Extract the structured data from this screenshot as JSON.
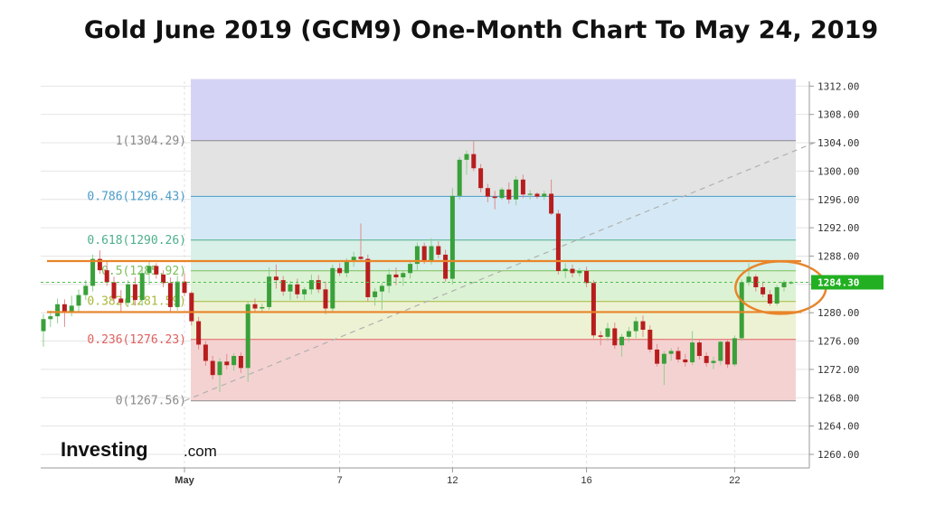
{
  "title": "Gold June 2019 (GCM9) One-Month Chart To May 24, 2019",
  "logo": {
    "main": "Investing",
    "suffix": ".com"
  },
  "chart_data": {
    "type": "candlestick",
    "y_range": [
      1258.0,
      1313.0
    ],
    "y_ticks": [
      "1312.00",
      "1308.00",
      "1304.00",
      "1300.00",
      "1296.00",
      "1292.00",
      "1288.00",
      "1284.00",
      "1280.00",
      "1276.00",
      "1272.00",
      "1268.00",
      "1264.00",
      "1260.00"
    ],
    "x_ticks": [
      {
        "label": "May",
        "index": 20
      },
      {
        "label": "7",
        "index": 42
      },
      {
        "label": "12",
        "index": 58
      },
      {
        "label": "16",
        "index": 77
      },
      {
        "label": "22",
        "index": 98
      }
    ],
    "last_price": "1284.30",
    "fib_levels": [
      {
        "ratio": 1,
        "price": 1304.29,
        "label": "1(1304.29)",
        "color": "#8a8a8a"
      },
      {
        "ratio": 0.786,
        "price": 1296.43,
        "label": "0.786(1296.43)",
        "color": "#4a9cc9"
      },
      {
        "ratio": 0.618,
        "price": 1290.26,
        "label": "0.618(1290.26)",
        "color": "#4daf8a"
      },
      {
        "ratio": 0.5,
        "price": 1285.92,
        "label": "0.5(1285.92)",
        "color": "#7bbf5a"
      },
      {
        "ratio": 0.382,
        "price": 1281.59,
        "label": "0.382(1281.59)",
        "color": "#a8b838"
      },
      {
        "ratio": 0.236,
        "price": 1276.23,
        "label": "0.236(1276.23)",
        "color": "#e06060"
      },
      {
        "ratio": 0,
        "price": 1267.56,
        "label": "0(1267.56)",
        "color": "#8a8a8a"
      }
    ],
    "fib_zones": [
      {
        "from": 1304.29,
        "to": 1313.0,
        "color": "#d5d3f5"
      },
      {
        "from": 1296.43,
        "to": 1304.29,
        "color": "#e3e3e3"
      },
      {
        "from": 1290.26,
        "to": 1296.43,
        "color": "#d4e9f5"
      },
      {
        "from": 1285.92,
        "to": 1290.26,
        "color": "#d8f0e8"
      },
      {
        "from": 1281.59,
        "to": 1285.92,
        "color": "#dcf2d4"
      },
      {
        "from": 1276.23,
        "to": 1281.59,
        "color": "#eef2d4"
      },
      {
        "from": 1267.56,
        "to": 1276.23,
        "color": "#f5d2d2"
      }
    ],
    "horizontal_lines": [
      {
        "price": 1287.3,
        "color": "#e8852a"
      },
      {
        "price": 1280.1,
        "color": "#e8852a"
      }
    ],
    "trendline": {
      "from": {
        "index": 20,
        "price": 1267.56
      },
      "to": {
        "index": 110,
        "price": 1304.29
      }
    },
    "highlight_circle": {
      "center_index": 103.5,
      "center_price": 1283.8
    },
    "candles": [
      [
        1277.4,
        1279.8,
        1275.2,
        1279.1
      ],
      [
        1279.1,
        1280.3,
        1278.0,
        1279.5
      ],
      [
        1279.5,
        1282.0,
        1278.5,
        1281.2
      ],
      [
        1281.2,
        1281.9,
        1278.0,
        1280.1
      ],
      [
        1280.1,
        1282.4,
        1279.5,
        1281.0
      ],
      [
        1281.0,
        1283.3,
        1280.0,
        1282.5
      ],
      [
        1282.5,
        1284.6,
        1281.8,
        1283.8
      ],
      [
        1283.8,
        1288.2,
        1283.0,
        1287.6
      ],
      [
        1287.6,
        1288.8,
        1285.5,
        1286.0
      ],
      [
        1286.0,
        1287.2,
        1283.8,
        1284.3
      ],
      [
        1284.3,
        1285.1,
        1281.5,
        1282.0
      ],
      [
        1282.0,
        1283.2,
        1280.2,
        1281.4
      ],
      [
        1281.4,
        1284.6,
        1280.8,
        1284.0
      ],
      [
        1284.0,
        1285.0,
        1281.0,
        1281.8
      ],
      [
        1281.8,
        1286.2,
        1281.0,
        1285.6
      ],
      [
        1285.6,
        1287.2,
        1284.0,
        1286.6
      ],
      [
        1286.6,
        1287.0,
        1284.8,
        1285.4
      ],
      [
        1285.4,
        1286.0,
        1283.6,
        1284.2
      ],
      [
        1284.2,
        1285.0,
        1280.0,
        1280.8
      ],
      [
        1280.8,
        1285.2,
        1280.3,
        1284.4
      ],
      [
        1284.4,
        1285.6,
        1282.3,
        1282.8
      ],
      [
        1282.8,
        1283.0,
        1278.2,
        1278.8
      ],
      [
        1278.8,
        1279.4,
        1274.8,
        1275.5
      ],
      [
        1275.5,
        1276.0,
        1272.5,
        1273.2
      ],
      [
        1273.2,
        1273.9,
        1270.6,
        1271.2
      ],
      [
        1271.2,
        1273.6,
        1268.8,
        1273.1
      ],
      [
        1273.1,
        1274.2,
        1272.0,
        1272.6
      ],
      [
        1272.6,
        1274.3,
        1271.8,
        1273.9
      ],
      [
        1273.9,
        1274.4,
        1271.5,
        1272.2
      ],
      [
        1272.2,
        1281.6,
        1270.2,
        1281.2
      ],
      [
        1281.2,
        1282.0,
        1280.1,
        1280.6
      ],
      [
        1280.6,
        1281.3,
        1280.0,
        1280.8
      ],
      [
        1280.8,
        1286.4,
        1280.4,
        1285.1
      ],
      [
        1285.1,
        1286.8,
        1283.4,
        1284.6
      ],
      [
        1284.6,
        1285.2,
        1282.4,
        1283.0
      ],
      [
        1283.0,
        1284.5,
        1281.8,
        1284.0
      ],
      [
        1284.0,
        1284.8,
        1282.0,
        1282.6
      ],
      [
        1282.6,
        1283.6,
        1281.8,
        1283.3
      ],
      [
        1283.3,
        1285.4,
        1282.6,
        1284.6
      ],
      [
        1284.6,
        1285.3,
        1282.8,
        1283.3
      ],
      [
        1283.3,
        1284.4,
        1279.8,
        1280.6
      ],
      [
        1280.6,
        1286.8,
        1280.2,
        1286.3
      ],
      [
        1286.3,
        1287.0,
        1285.2,
        1285.6
      ],
      [
        1285.6,
        1287.7,
        1285.0,
        1287.3
      ],
      [
        1287.3,
        1288.6,
        1286.5,
        1287.9
      ],
      [
        1287.9,
        1292.6,
        1287.2,
        1287.6
      ],
      [
        1287.6,
        1288.2,
        1281.6,
        1282.2
      ],
      [
        1282.2,
        1283.5,
        1281.0,
        1283.0
      ],
      [
        1283.0,
        1284.2,
        1280.4,
        1283.8
      ],
      [
        1283.8,
        1286.2,
        1282.8,
        1285.4
      ],
      [
        1285.4,
        1286.4,
        1283.9,
        1285.0
      ],
      [
        1285.0,
        1286.0,
        1283.8,
        1285.6
      ],
      [
        1285.6,
        1287.2,
        1284.8,
        1286.9
      ],
      [
        1286.9,
        1289.9,
        1286.0,
        1289.4
      ],
      [
        1289.4,
        1289.9,
        1286.9,
        1287.4
      ],
      [
        1287.4,
        1290.5,
        1286.8,
        1289.4
      ],
      [
        1289.4,
        1290.1,
        1287.7,
        1288.2
      ],
      [
        1288.2,
        1288.9,
        1284.4,
        1284.8
      ],
      [
        1284.8,
        1297.6,
        1284.0,
        1296.5
      ],
      [
        1296.5,
        1302.0,
        1296.0,
        1301.6
      ],
      [
        1301.6,
        1302.9,
        1299.5,
        1302.4
      ],
      [
        1302.4,
        1304.2,
        1300.0,
        1300.4
      ],
      [
        1300.4,
        1301.0,
        1297.0,
        1297.6
      ],
      [
        1297.6,
        1298.2,
        1295.6,
        1296.4
      ],
      [
        1296.4,
        1297.2,
        1294.6,
        1296.2
      ],
      [
        1296.2,
        1297.7,
        1295.9,
        1297.4
      ],
      [
        1297.4,
        1298.4,
        1295.4,
        1296.0
      ],
      [
        1296.0,
        1299.3,
        1295.2,
        1298.8
      ],
      [
        1298.8,
        1299.5,
        1296.2,
        1296.7
      ],
      [
        1296.7,
        1297.3,
        1296.0,
        1296.8
      ],
      [
        1296.8,
        1297.0,
        1296.1,
        1296.4
      ],
      [
        1296.4,
        1297.2,
        1295.9,
        1296.8
      ],
      [
        1296.8,
        1298.8,
        1293.8,
        1294.0
      ],
      [
        1294.0,
        1294.5,
        1285.4,
        1285.9
      ],
      [
        1285.9,
        1287.0,
        1284.9,
        1286.2
      ],
      [
        1286.2,
        1286.8,
        1285.0,
        1285.6
      ],
      [
        1285.6,
        1286.3,
        1285.1,
        1285.9
      ],
      [
        1285.9,
        1286.5,
        1283.6,
        1284.2
      ],
      [
        1284.2,
        1284.6,
        1276.4,
        1276.8
      ],
      [
        1276.8,
        1277.4,
        1275.4,
        1276.6
      ],
      [
        1276.6,
        1278.6,
        1276.0,
        1277.8
      ],
      [
        1277.8,
        1278.6,
        1274.9,
        1275.4
      ],
      [
        1275.4,
        1277.0,
        1273.8,
        1276.6
      ],
      [
        1276.6,
        1278.0,
        1275.9,
        1277.4
      ],
      [
        1277.4,
        1279.4,
        1276.4,
        1278.8
      ],
      [
        1278.8,
        1279.6,
        1276.6,
        1277.6
      ],
      [
        1277.6,
        1278.2,
        1274.4,
        1274.8
      ],
      [
        1274.8,
        1275.6,
        1272.4,
        1272.8
      ],
      [
        1272.8,
        1274.6,
        1269.8,
        1274.2
      ],
      [
        1274.2,
        1275.0,
        1273.2,
        1274.6
      ],
      [
        1274.6,
        1275.2,
        1273.0,
        1273.4
      ],
      [
        1273.4,
        1274.2,
        1272.4,
        1273.0
      ],
      [
        1273.0,
        1277.4,
        1272.6,
        1275.8
      ],
      [
        1275.8,
        1276.2,
        1273.4,
        1273.9
      ],
      [
        1273.9,
        1274.4,
        1272.4,
        1272.9
      ],
      [
        1272.9,
        1273.8,
        1272.0,
        1273.2
      ],
      [
        1273.2,
        1276.0,
        1272.6,
        1275.9
      ],
      [
        1275.9,
        1276.2,
        1272.2,
        1272.7
      ],
      [
        1272.7,
        1276.8,
        1272.4,
        1276.4
      ],
      [
        1276.4,
        1284.7,
        1276.0,
        1284.3
      ],
      [
        1284.3,
        1287.0,
        1283.8,
        1285.1
      ],
      [
        1285.1,
        1285.4,
        1283.0,
        1283.6
      ],
      [
        1283.6,
        1284.4,
        1282.2,
        1282.6
      ],
      [
        1282.6,
        1283.2,
        1281.0,
        1281.3
      ],
      [
        1281.3,
        1283.9,
        1281.0,
        1283.6
      ],
      [
        1283.6,
        1284.6,
        1283.0,
        1284.3
      ],
      [
        1284.3,
        1284.5,
        1284.0,
        1284.3
      ]
    ]
  }
}
